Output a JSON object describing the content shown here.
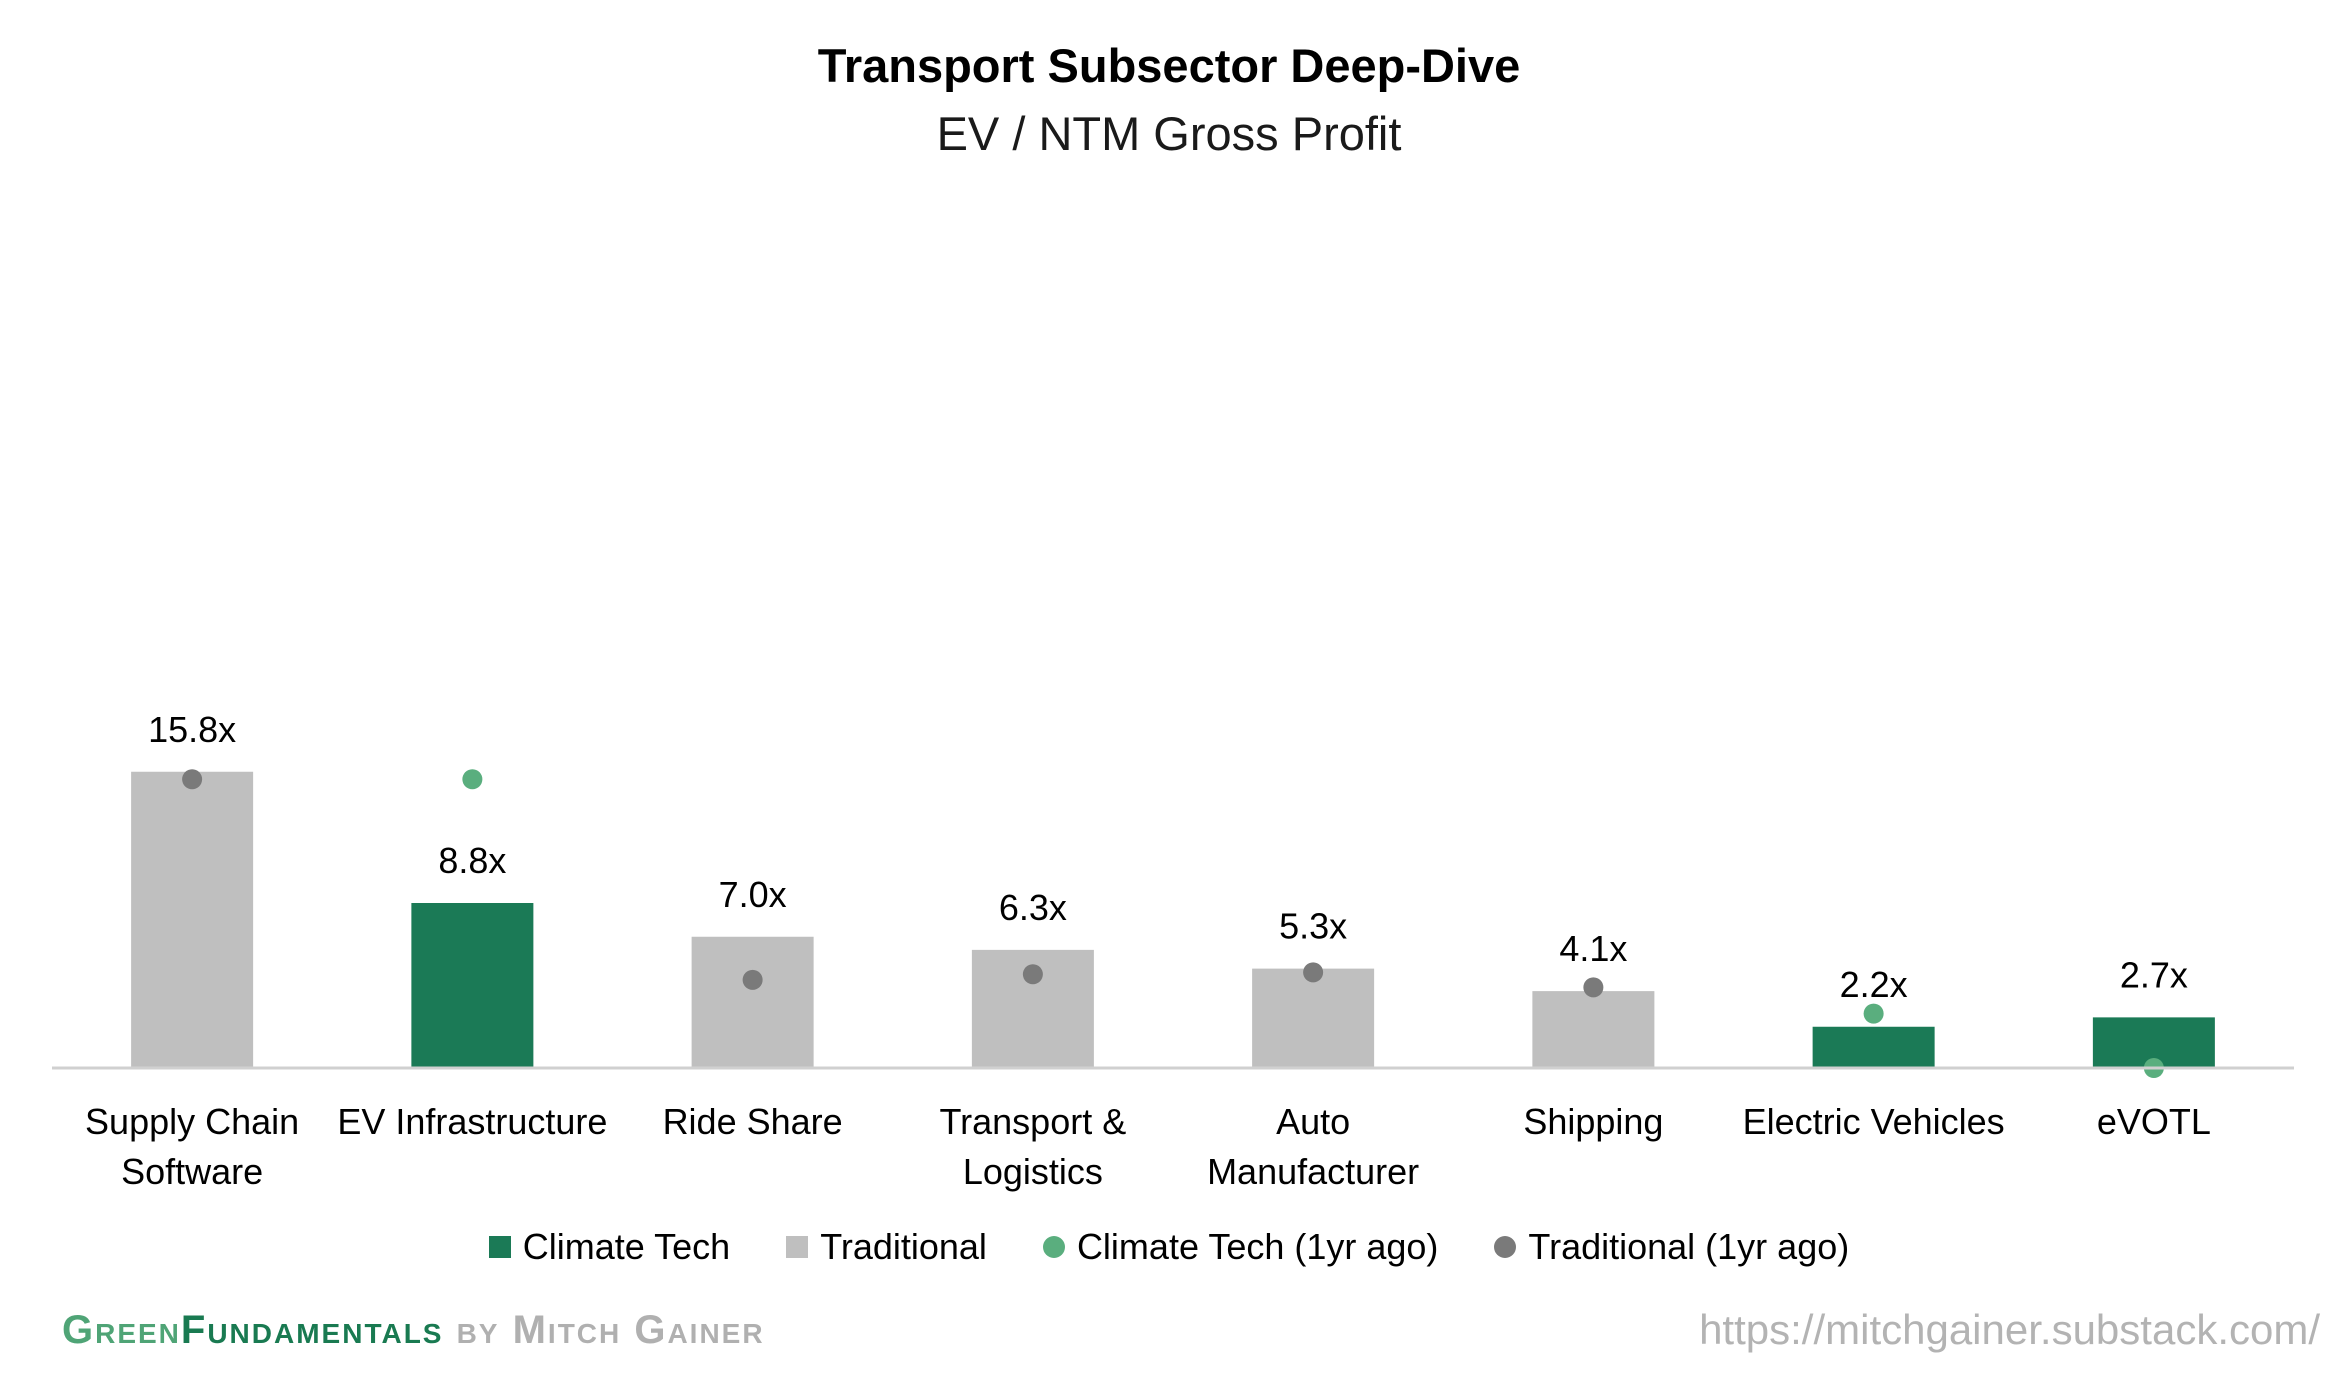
{
  "chart_data": {
    "type": "bar",
    "title": "Transport Subsector Deep-Dive",
    "subtitle": "EV / NTM Gross Profit",
    "categories": [
      [
        "Supply Chain",
        "Software"
      ],
      [
        "EV Infrastructure"
      ],
      [
        "Ride Share"
      ],
      [
        "Transport &",
        "Logistics"
      ],
      [
        "Auto",
        "Manufacturer"
      ],
      [
        "Shipping"
      ],
      [
        "Electric Vehicles"
      ],
      [
        "eVOTL"
      ]
    ],
    "values": [
      15.8,
      8.8,
      7.0,
      6.3,
      5.3,
      4.1,
      2.2,
      2.7
    ],
    "value_labels": [
      "15.8x",
      "8.8x",
      "7.0x",
      "6.3x",
      "5.3x",
      "4.1x",
      "2.2x",
      "2.7x"
    ],
    "group": [
      "Traditional",
      "Climate Tech",
      "Traditional",
      "Traditional",
      "Traditional",
      "Traditional",
      "Climate Tech",
      "Climate Tech"
    ],
    "one_year_ago": [
      15.4,
      15.4,
      4.7,
      5.0,
      5.1,
      4.3,
      2.9,
      0.0
    ],
    "ylim": [
      0,
      40
    ],
    "grid": false,
    "legend_position": "bottom",
    "legend": [
      {
        "name": "Climate Tech",
        "marker": "square",
        "color": "#1b7a56"
      },
      {
        "name": "Traditional",
        "marker": "square",
        "color": "#bfbfbf"
      },
      {
        "name": "Climate Tech (1yr ago)",
        "marker": "dot",
        "color": "#5aae7e"
      },
      {
        "name": "Traditional (1yr ago)",
        "marker": "dot",
        "color": "#7a7a7a"
      }
    ],
    "colors": {
      "Climate Tech": "#1b7a56",
      "Traditional": "#bfbfbf",
      "Climate Tech (1yr ago)": "#5aae7e",
      "Traditional (1yr ago)": "#7a7a7a"
    }
  },
  "footer": {
    "brand_part1": "Green",
    "brand_part2": "Fundamentals",
    "brand_part3": " by Mitch Gainer",
    "url": "https://mitchgainer.substack.com/"
  }
}
